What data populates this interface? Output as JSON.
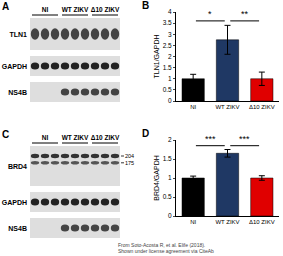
{
  "panel_labels": [
    "A",
    "B",
    "C",
    "D"
  ],
  "blots": [
    {
      "groups": [
        "NI",
        "WT ZIKV",
        "Δ10 ZIKV"
      ],
      "rows": [
        {
          "label": "TLN1",
          "bands": [
            "NI",
            "WT ZIKV",
            "Δ10 ZIKV"
          ]
        },
        {
          "label": "GAPDH",
          "bands": [
            "NI",
            "WT ZIKV",
            "Δ10 ZIKV"
          ]
        },
        {
          "label": "NS4B",
          "bands": [
            "WT ZIKV",
            "Δ10 ZIKV"
          ]
        }
      ]
    },
    {
      "groups": [
        "NI",
        "WT ZIKV",
        "Δ10 ZIKV"
      ],
      "rows": [
        {
          "label": "BRD4",
          "bands": [
            "NI",
            "WT ZIKV",
            "Δ10 ZIKV"
          ],
          "markers": [
            204,
            175
          ]
        },
        {
          "label": "GAPDH",
          "bands": [
            "NI",
            "WT ZIKV",
            "Δ10 ZIKV"
          ]
        },
        {
          "label": "NS4B",
          "bands": [
            "WT ZIKV",
            "Δ10 ZIKV"
          ]
        }
      ]
    }
  ],
  "chart_data": [
    {
      "type": "bar",
      "y_label": "TLN1/GAPDH",
      "categories": [
        "NI",
        "WT ZIKV",
        "Δ10 ZIKV"
      ],
      "values": [
        1.0,
        2.75,
        1.0
      ],
      "errors": [
        0.2,
        0.65,
        0.3
      ],
      "colors": [
        "#000000",
        "#1f3864",
        "#e00000"
      ],
      "ylim": [
        0,
        4
      ],
      "yticks": [
        0,
        0.5,
        1,
        1.5,
        2,
        2.5,
        3,
        3.5,
        4
      ],
      "grid": false,
      "annotations": [
        {
          "text": "*",
          "between": [
            "NI",
            "WT ZIKV"
          ]
        },
        {
          "text": "**",
          "between": [
            "WT ZIKV",
            "Δ10 ZIKV"
          ]
        }
      ]
    },
    {
      "type": "bar",
      "y_label": "BRD4/GAPDH",
      "categories": [
        "NI",
        "WT ZIKV",
        "Δ10 ZIKV"
      ],
      "values": [
        1.0,
        1.65,
        1.0
      ],
      "errors": [
        0.05,
        0.1,
        0.06
      ],
      "colors": [
        "#000000",
        "#1f3864",
        "#e00000"
      ],
      "ylim": [
        0,
        2
      ],
      "yticks": [
        0,
        0.5,
        1,
        1.5,
        2
      ],
      "grid": false,
      "annotations": [
        {
          "text": "***",
          "between": [
            "NI",
            "WT ZIKV"
          ]
        },
        {
          "text": "***",
          "between": [
            "WT ZIKV",
            "Δ10 ZIKV"
          ]
        }
      ]
    }
  ],
  "credit": [
    "From Soto-Acosta R, et al. Elife (2018).",
    "Shown under license agreement via CiteAb"
  ]
}
